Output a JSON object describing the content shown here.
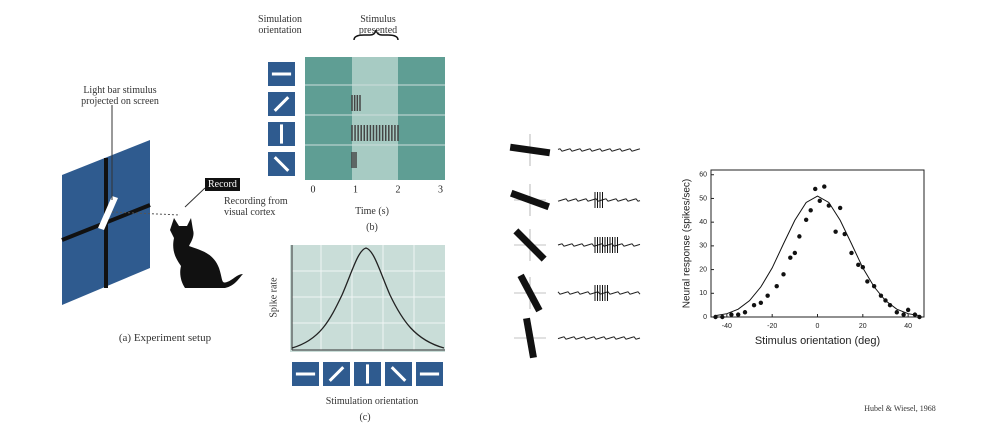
{
  "panel_a": {
    "stimulus_label": "Light bar stimulus projected on screen",
    "record_button": "Record",
    "recording_label": "Recording from visual cortex",
    "caption": "(a) Experiment setup"
  },
  "panel_b": {
    "orientation_header": "Simulation orientation",
    "stimulus_header": "Stimulus presented",
    "x_ticks": [
      0,
      1,
      2,
      3
    ],
    "x_label": "Time (s)",
    "caption": "(b)"
  },
  "panel_c": {
    "y_label": "Spike rate",
    "x_label": "Stimulation orientation",
    "caption": "(c)"
  },
  "chart_data": {
    "type": "scatter",
    "xlabel": "Stimulus orientation (deg)",
    "ylabel": "Neural response (spikes/sec)",
    "xlim": [
      -47,
      47
    ],
    "ylim": [
      0,
      62
    ],
    "xticks": [
      -40,
      -20,
      0,
      20,
      40
    ],
    "yticks": [
      0,
      10,
      20,
      30,
      40,
      50,
      60
    ],
    "series": [
      {
        "type": "scatter",
        "color": "#111111",
        "x": [
          -45,
          -42,
          -38,
          -35,
          -32,
          -28,
          -25,
          -22,
          -18,
          -15,
          -12,
          -10,
          -8,
          -5,
          -3,
          -1,
          1,
          3,
          5,
          8,
          10,
          12,
          15,
          18,
          20,
          22,
          25,
          28,
          30,
          32,
          35,
          38,
          40,
          43,
          45
        ],
        "values": [
          0,
          0,
          1,
          1,
          2,
          5,
          6,
          9,
          13,
          18,
          25,
          27,
          34,
          41,
          45,
          54,
          49,
          55,
          47,
          36,
          46,
          35,
          27,
          22,
          21,
          15,
          13,
          9,
          7,
          5,
          2,
          1,
          3,
          1,
          0
        ]
      },
      {
        "type": "line",
        "color": "#111111",
        "x": [
          -45,
          -40,
          -35,
          -30,
          -25,
          -20,
          -15,
          -10,
          -5,
          0,
          5,
          10,
          15,
          20,
          25,
          30,
          35,
          40,
          45
        ],
        "values": [
          0.6,
          1.4,
          3.3,
          6.9,
          12.7,
          20.7,
          30.9,
          40.8,
          48.3,
          51,
          48.3,
          40.8,
          30.9,
          20.7,
          12.7,
          6.9,
          3.3,
          1.4,
          0.6
        ]
      }
    ]
  },
  "credit": "Hubel & Wiesel, 1968"
}
